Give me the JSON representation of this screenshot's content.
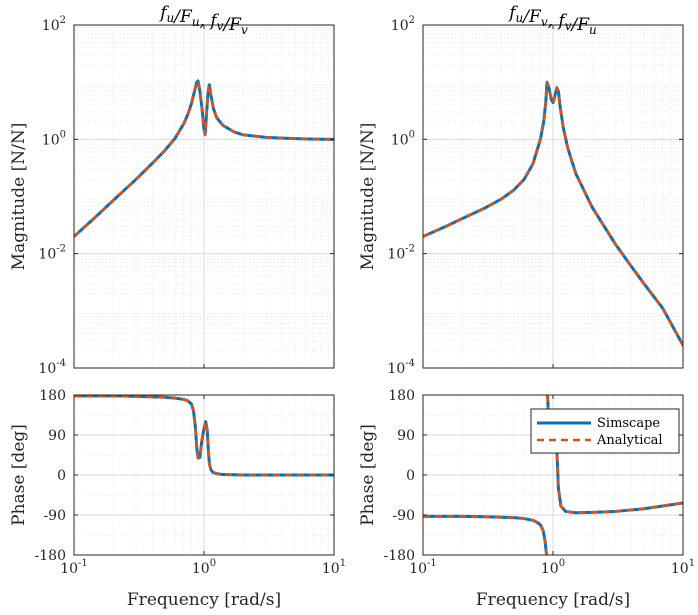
{
  "chart_data": [
    {
      "type": "line",
      "panel": "top-left",
      "title": "f_u/F_u, f_v/F_v",
      "xlabel": "",
      "ylabel": "Magnitude [N/N]",
      "xscale": "log",
      "yscale": "log",
      "xlim": [
        0.1,
        10
      ],
      "ylim": [
        0.0001,
        100
      ],
      "xticks": [],
      "yticks": [
        "10^{-4}",
        "10^{-2}",
        "10^{0}",
        "10^{2}"
      ],
      "grid": true,
      "series": [
        {
          "name": "Simscape",
          "color": "#0072BD",
          "style": "solid",
          "x": [
            0.1,
            0.15,
            0.2,
            0.3,
            0.4,
            0.5,
            0.6,
            0.7,
            0.75,
            0.8,
            0.85,
            0.88,
            0.9,
            0.93,
            0.97,
            1.0,
            1.02,
            1.05,
            1.08,
            1.1,
            1.13,
            1.18,
            1.25,
            1.4,
            1.7,
            2.0,
            3.0,
            5.0,
            7.0,
            10.0
          ],
          "y": [
            0.02,
            0.046,
            0.085,
            0.2,
            0.38,
            0.64,
            1.05,
            1.9,
            2.7,
            4.2,
            7.3,
            10.0,
            10.5,
            7.0,
            3.1,
            1.5,
            1.2,
            3.2,
            7.5,
            9.0,
            6.0,
            3.5,
            2.4,
            1.75,
            1.35,
            1.2,
            1.08,
            1.03,
            1.01,
            1.0
          ]
        },
        {
          "name": "Analytical",
          "color": "#D95319",
          "style": "dashed",
          "x": [
            0.1,
            0.15,
            0.2,
            0.3,
            0.4,
            0.5,
            0.6,
            0.7,
            0.75,
            0.8,
            0.85,
            0.88,
            0.9,
            0.93,
            0.97,
            1.0,
            1.02,
            1.05,
            1.08,
            1.1,
            1.13,
            1.18,
            1.25,
            1.4,
            1.7,
            2.0,
            3.0,
            5.0,
            7.0,
            10.0
          ],
          "y": [
            0.02,
            0.046,
            0.085,
            0.2,
            0.38,
            0.64,
            1.05,
            1.9,
            2.7,
            4.2,
            7.3,
            10.0,
            10.5,
            7.0,
            3.1,
            1.5,
            1.2,
            3.2,
            7.5,
            9.0,
            6.0,
            3.5,
            2.4,
            1.75,
            1.35,
            1.2,
            1.08,
            1.03,
            1.01,
            1.0
          ]
        }
      ]
    },
    {
      "type": "line",
      "panel": "top-right",
      "title": "f_u/F_v, f_v/F_u",
      "xlabel": "",
      "ylabel": "Magnitude [N/N]",
      "xscale": "log",
      "yscale": "log",
      "xlim": [
        0.1,
        10
      ],
      "ylim": [
        0.0001,
        100
      ],
      "xticks": [],
      "yticks": [
        "10^{-4}",
        "10^{-2}",
        "10^{0}",
        "10^{2}"
      ],
      "grid": true,
      "series": [
        {
          "name": "Simscape",
          "color": "#0072BD",
          "style": "solid",
          "x": [
            0.1,
            0.15,
            0.2,
            0.3,
            0.4,
            0.5,
            0.6,
            0.7,
            0.8,
            0.85,
            0.88,
            0.9,
            0.93,
            0.97,
            1.0,
            1.03,
            1.07,
            1.1,
            1.13,
            1.2,
            1.3,
            1.5,
            2.0,
            3.0,
            4.0,
            5.0,
            7.0,
            10.0
          ],
          "y": [
            0.02,
            0.03,
            0.041,
            0.063,
            0.09,
            0.13,
            0.2,
            0.37,
            1.0,
            2.1,
            4.5,
            10.0,
            8.0,
            5.0,
            4.4,
            5.5,
            8.0,
            7.0,
            4.0,
            1.6,
            0.7,
            0.25,
            0.065,
            0.015,
            0.006,
            0.003,
            0.0011,
            0.00025
          ]
        },
        {
          "name": "Analytical",
          "color": "#D95319",
          "style": "dashed",
          "x": [
            0.1,
            0.15,
            0.2,
            0.3,
            0.4,
            0.5,
            0.6,
            0.7,
            0.8,
            0.85,
            0.88,
            0.9,
            0.93,
            0.97,
            1.0,
            1.03,
            1.07,
            1.1,
            1.13,
            1.2,
            1.3,
            1.5,
            2.0,
            3.0,
            4.0,
            5.0,
            7.0,
            10.0
          ],
          "y": [
            0.02,
            0.03,
            0.041,
            0.063,
            0.09,
            0.13,
            0.2,
            0.37,
            1.0,
            2.1,
            4.5,
            10.0,
            8.0,
            5.0,
            4.4,
            5.5,
            8.0,
            7.0,
            4.0,
            1.6,
            0.7,
            0.25,
            0.065,
            0.015,
            0.006,
            0.003,
            0.0011,
            0.00025
          ]
        }
      ]
    },
    {
      "type": "line",
      "panel": "bottom-left",
      "title": "",
      "xlabel": "Frequency [rad/s]",
      "ylabel": "Phase [deg]",
      "xscale": "log",
      "yscale": "linear",
      "xlim": [
        0.1,
        10
      ],
      "ylim": [
        -180,
        180
      ],
      "xticks": [
        "10^{-1}",
        "10^{0}",
        "10^{1}"
      ],
      "yticks": [
        "-180",
        "-90",
        "0",
        "90",
        "180"
      ],
      "grid": true,
      "series": [
        {
          "name": "Simscape",
          "color": "#0072BD",
          "style": "solid",
          "x": [
            0.1,
            0.2,
            0.3,
            0.5,
            0.6,
            0.7,
            0.75,
            0.8,
            0.83,
            0.86,
            0.88,
            0.9,
            0.93,
            0.96,
            1.0,
            1.03,
            1.06,
            1.08,
            1.1,
            1.13,
            1.17,
            1.25,
            1.4,
            2.0,
            3.0,
            5.0,
            10.0
          ],
          "y": [
            178,
            178,
            177,
            175,
            173,
            170,
            167,
            160,
            145,
            105,
            60,
            38,
            40,
            75,
            105,
            120,
            100,
            55,
            25,
            12,
            6,
            3,
            1,
            0,
            0,
            0,
            0
          ]
        },
        {
          "name": "Analytical",
          "color": "#D95319",
          "style": "dashed",
          "x": [
            0.1,
            0.2,
            0.3,
            0.5,
            0.6,
            0.7,
            0.75,
            0.8,
            0.83,
            0.86,
            0.88,
            0.9,
            0.93,
            0.96,
            1.0,
            1.03,
            1.06,
            1.08,
            1.1,
            1.13,
            1.17,
            1.25,
            1.4,
            2.0,
            3.0,
            5.0,
            10.0
          ],
          "y": [
            178,
            178,
            177,
            175,
            173,
            170,
            167,
            160,
            145,
            105,
            60,
            38,
            40,
            75,
            105,
            120,
            100,
            55,
            25,
            12,
            6,
            3,
            1,
            0,
            0,
            0,
            0
          ]
        }
      ]
    },
    {
      "type": "line",
      "panel": "bottom-right",
      "title": "",
      "xlabel": "Frequency [rad/s]",
      "ylabel": "Phase [deg]",
      "xscale": "log",
      "yscale": "linear",
      "xlim": [
        0.1,
        10
      ],
      "ylim": [
        -180,
        180
      ],
      "xticks": [
        "10^{-1}",
        "10^{0}",
        "10^{1}"
      ],
      "yticks": [
        "-180",
        "-90",
        "0",
        "90",
        "180"
      ],
      "grid": true,
      "legend": {
        "placement": "top-right",
        "entries": [
          "Simscape",
          "Analytical"
        ]
      },
      "series": [
        {
          "name": "Simscape",
          "color": "#0072BD",
          "style": "solid",
          "segments": [
            {
              "x": [
                0.1,
                0.2,
                0.3,
                0.5,
                0.6,
                0.7,
                0.75,
                0.8,
                0.84,
                0.87,
                0.89,
                0.9
              ],
              "y": [
                -93,
                -93,
                -94,
                -96,
                -98,
                -102,
                -106,
                -112,
                -125,
                -150,
                -178,
                -180
              ]
            },
            {
              "x": [
                0.9,
                0.91,
                0.93,
                0.96,
                1.0,
                1.03,
                1.06,
                1.08,
                1.1,
                1.15,
                1.25,
                1.5,
                2.0,
                3.0,
                5.0,
                10.0
              ],
              "y": [
                180,
                175,
                100,
                60,
                80,
                100,
                80,
                30,
                -30,
                -70,
                -82,
                -85,
                -84,
                -82,
                -76,
                -63
              ]
            }
          ]
        },
        {
          "name": "Analytical",
          "color": "#D95319",
          "style": "dashed",
          "segments": [
            {
              "x": [
                0.1,
                0.2,
                0.3,
                0.5,
                0.6,
                0.7,
                0.75,
                0.8,
                0.84,
                0.87,
                0.89,
                0.9
              ],
              "y": [
                -93,
                -93,
                -94,
                -96,
                -98,
                -102,
                -106,
                -112,
                -125,
                -150,
                -178,
                -180
              ]
            },
            {
              "x": [
                0.9,
                0.91,
                0.93,
                0.96,
                1.0,
                1.03,
                1.06,
                1.08,
                1.1,
                1.15,
                1.25,
                1.5,
                2.0,
                3.0,
                5.0,
                10.0
              ],
              "y": [
                180,
                175,
                100,
                60,
                80,
                100,
                80,
                30,
                -30,
                -70,
                -82,
                -85,
                -84,
                -82,
                -76,
                -63
              ]
            }
          ]
        }
      ]
    }
  ]
}
